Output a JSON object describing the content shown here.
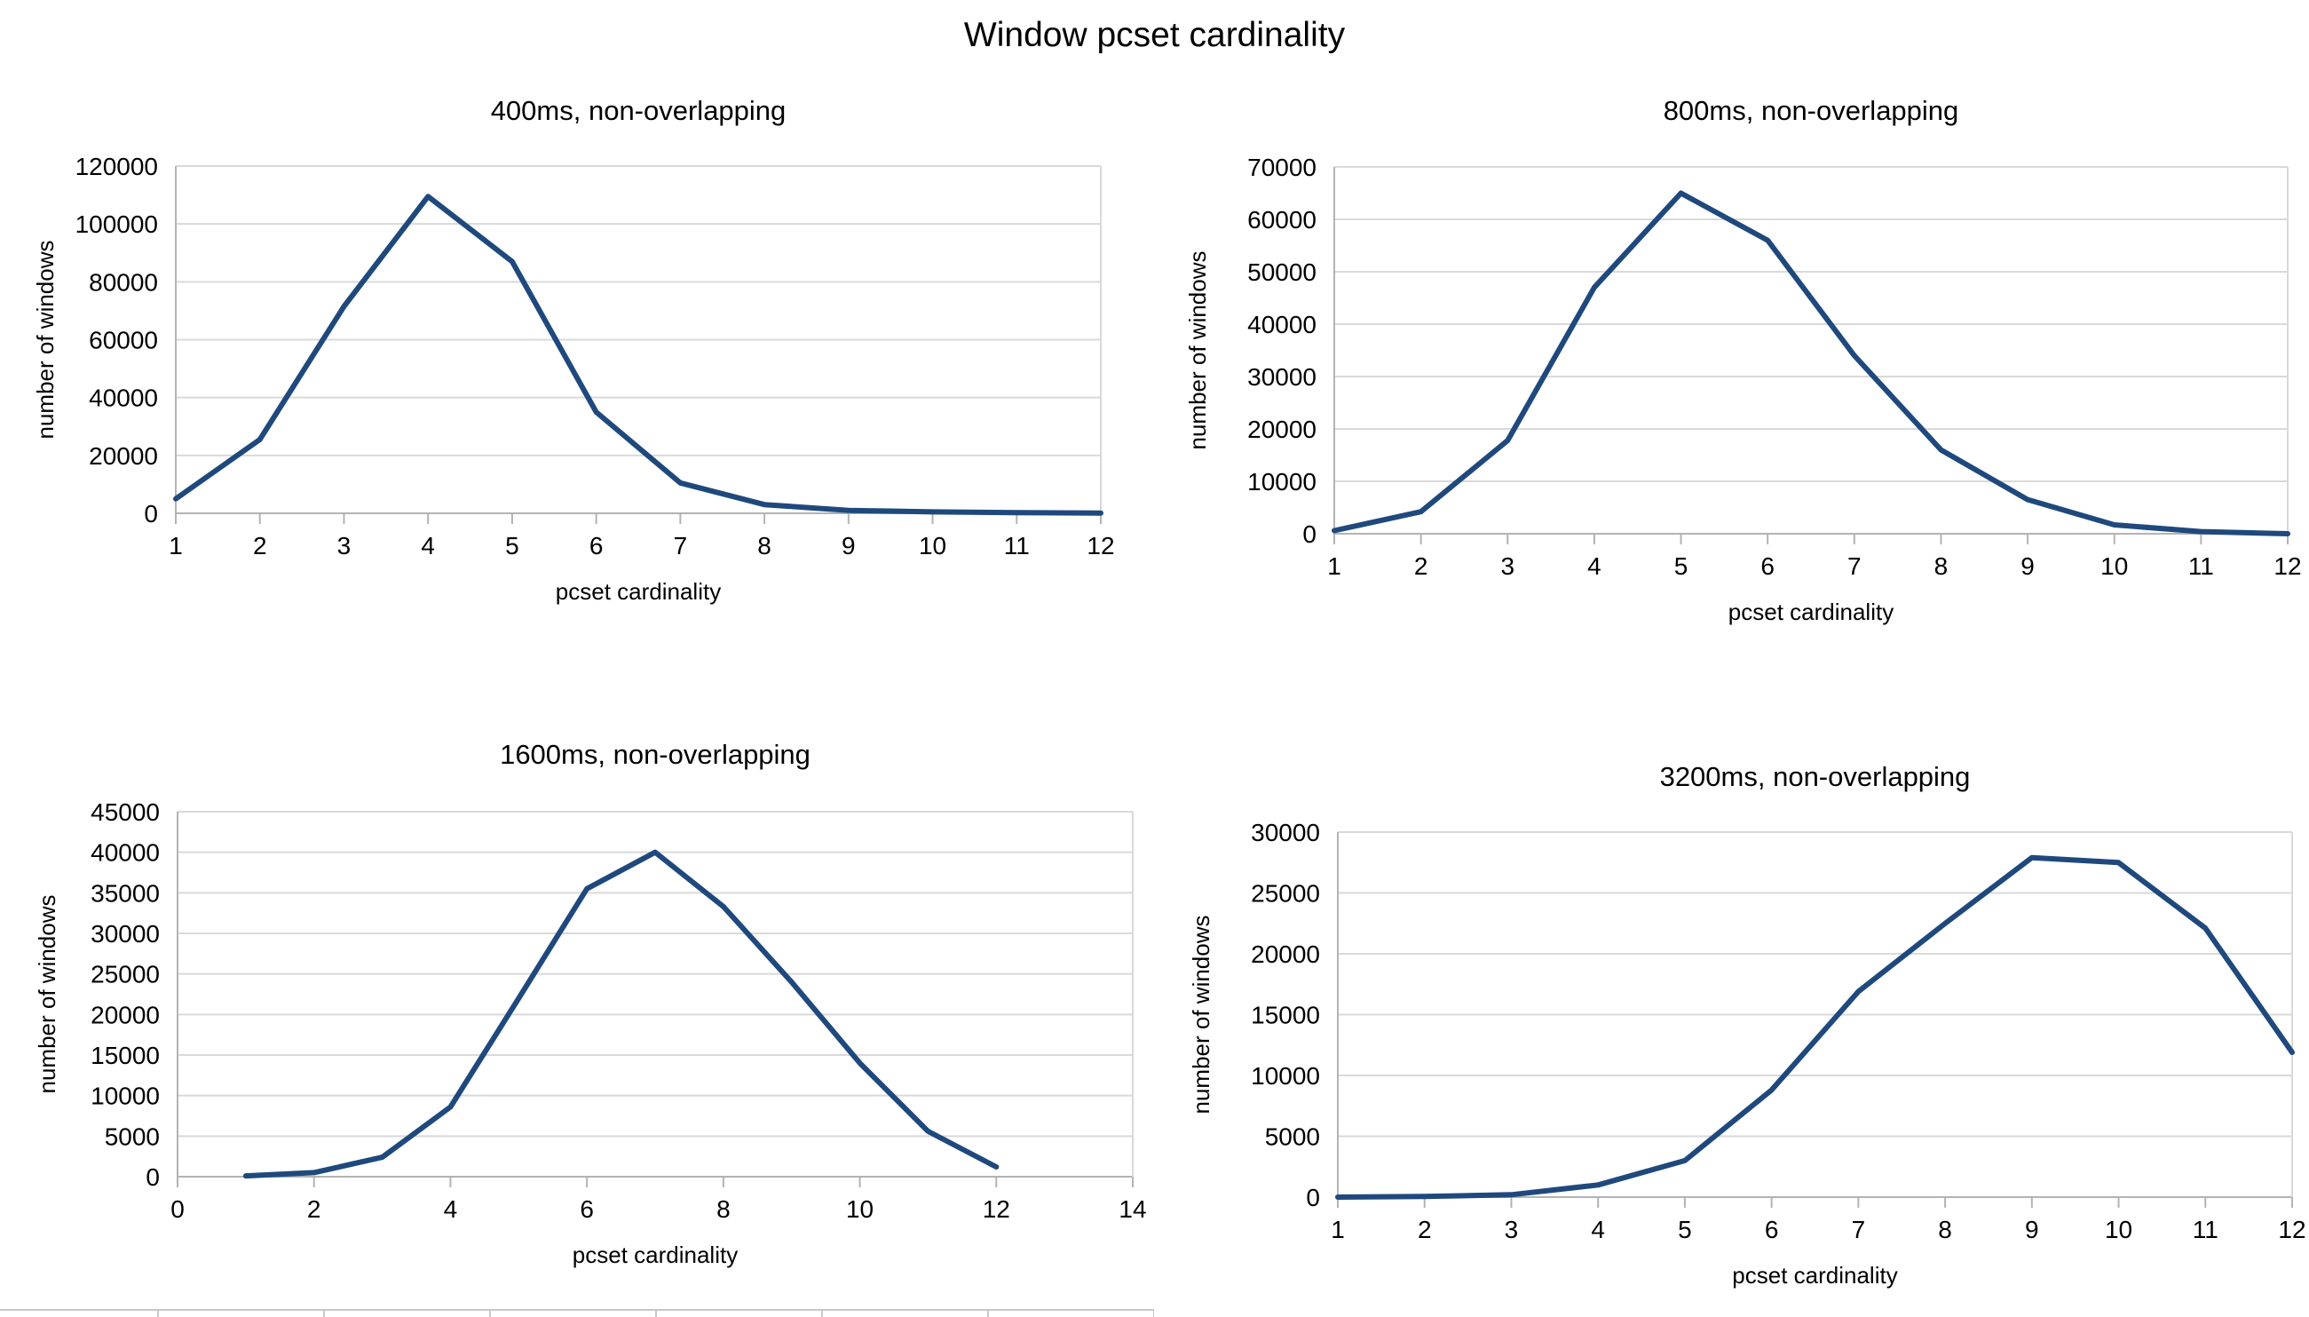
{
  "page": {
    "title": "Window pcset cardinality"
  },
  "colors": {
    "line": "#1f497d",
    "grid": "#d9d9d9",
    "axis": "#b3b3b3"
  },
  "chart_data": [
    {
      "type": "line",
      "title": "400ms, non-overlapping",
      "xlabel": "pcset cardinality",
      "ylabel": "number of windows",
      "x": [
        1,
        2,
        3,
        4,
        5,
        6,
        7,
        8,
        9,
        10,
        11,
        12
      ],
      "xticks": [
        1,
        2,
        3,
        4,
        5,
        6,
        7,
        8,
        9,
        10,
        11,
        12
      ],
      "xlim": [
        1,
        12
      ],
      "ylim": [
        0,
        120000
      ],
      "yticks": [
        0,
        20000,
        40000,
        60000,
        80000,
        100000,
        120000
      ],
      "series": [
        {
          "values": [
            5000,
            25500,
            71500,
            109500,
            87000,
            35000,
            10500,
            3000,
            1000,
            500,
            200,
            100
          ]
        }
      ],
      "grid": true
    },
    {
      "type": "line",
      "title": "800ms, non-overlapping",
      "xlabel": "pcset cardinality",
      "ylabel": "number of windows",
      "x": [
        1,
        2,
        3,
        4,
        5,
        6,
        7,
        8,
        9,
        10,
        11,
        12
      ],
      "xticks": [
        1,
        2,
        3,
        4,
        5,
        6,
        7,
        8,
        9,
        10,
        11,
        12
      ],
      "xlim": [
        1,
        12
      ],
      "ylim": [
        0,
        70000
      ],
      "yticks": [
        0,
        10000,
        20000,
        30000,
        40000,
        50000,
        60000,
        70000
      ],
      "series": [
        {
          "values": [
            600,
            4200,
            17800,
            47000,
            65000,
            56000,
            34000,
            16000,
            6500,
            1700,
            400,
            0
          ]
        }
      ],
      "grid": true
    },
    {
      "type": "line",
      "title": "1600ms, non-overlapping",
      "xlabel": "pcset cardinality",
      "ylabel": "number of windows",
      "x": [
        1,
        2,
        3,
        4,
        5,
        6,
        7,
        8,
        9,
        10,
        11,
        12
      ],
      "xticks": [
        0,
        2,
        4,
        6,
        8,
        10,
        12,
        14
      ],
      "xlim": [
        0,
        14
      ],
      "ylim": [
        0,
        45000
      ],
      "yticks": [
        0,
        5000,
        10000,
        15000,
        20000,
        25000,
        30000,
        35000,
        40000,
        45000
      ],
      "series": [
        {
          "values": [
            100,
            500,
            2400,
            8600,
            22000,
            35500,
            40000,
            33300,
            24000,
            14000,
            5600,
            1200
          ]
        }
      ],
      "grid": true
    },
    {
      "type": "line",
      "title": "3200ms, non-overlapping",
      "xlabel": "pcset cardinality",
      "ylabel": "number of windows",
      "x": [
        1,
        2,
        3,
        4,
        5,
        6,
        7,
        8,
        9,
        10,
        11,
        12
      ],
      "xticks": [
        1,
        2,
        3,
        4,
        5,
        6,
        7,
        8,
        9,
        10,
        11,
        12
      ],
      "xlim": [
        1,
        12
      ],
      "ylim": [
        0,
        30000
      ],
      "yticks": [
        0,
        5000,
        10000,
        15000,
        20000,
        25000,
        30000
      ],
      "series": [
        {
          "values": [
            0,
            50,
            200,
            1000,
            3000,
            8800,
            16900,
            22500,
            27900,
            27500,
            22100,
            11900
          ]
        }
      ],
      "grid": true
    }
  ]
}
